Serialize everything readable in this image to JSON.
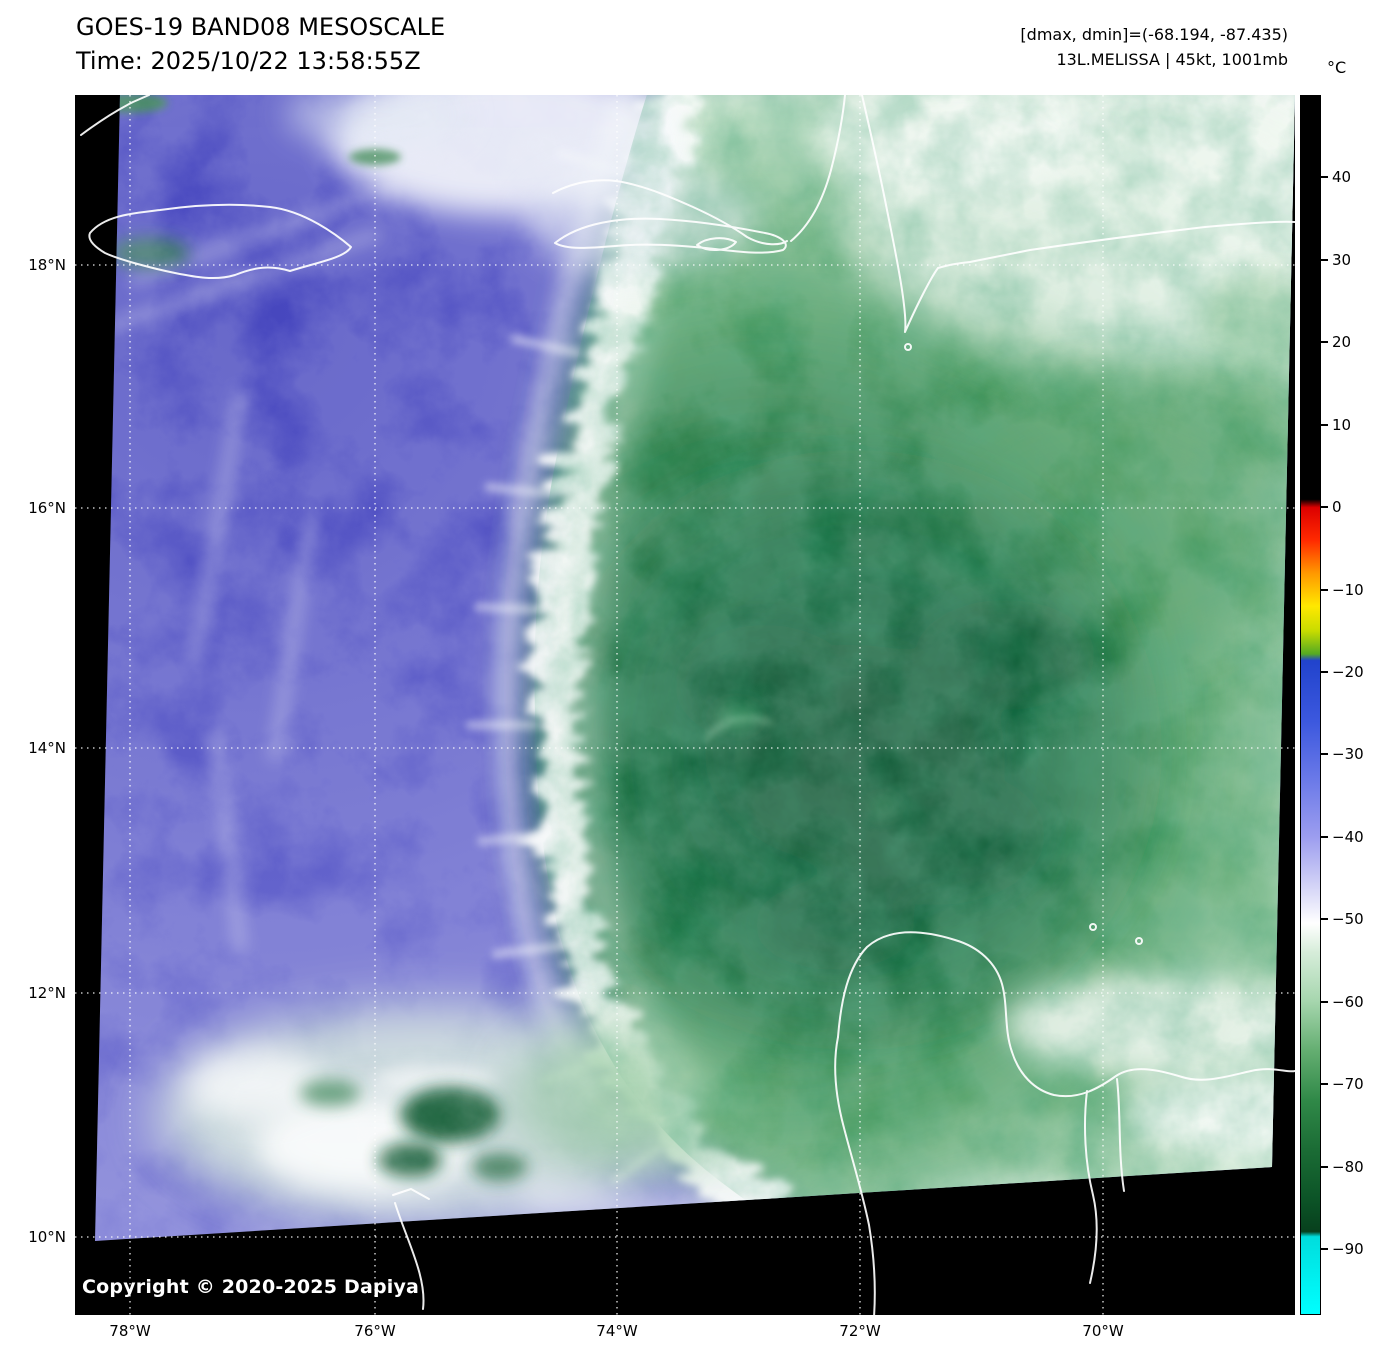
{
  "header": {
    "title": "GOES-19 BAND08 MESOSCALE",
    "time_line": "Time: 2025/10/22 13:58:55Z",
    "range_line": "[dmax, dmin]=(-68.194, -87.435)",
    "storm_line": "13L.MELISSA | 45kt, 1001mb"
  },
  "colorbar": {
    "unit_label": "°C",
    "value_max": 50,
    "value_min": -98,
    "ticks": [
      40,
      30,
      20,
      10,
      0,
      -10,
      -20,
      -30,
      -40,
      -50,
      -60,
      -70,
      -80,
      -90
    ],
    "gradient": [
      {
        "v": 50,
        "c": "#000000"
      },
      {
        "v": 1,
        "c": "#000000"
      },
      {
        "v": 0,
        "c": "#dd0000"
      },
      {
        "v": -4,
        "c": "#ff2a00"
      },
      {
        "v": -8,
        "c": "#ff9900"
      },
      {
        "v": -12,
        "c": "#ffe800"
      },
      {
        "v": -15,
        "c": "#c8dc00"
      },
      {
        "v": -17.8,
        "c": "#55aa22"
      },
      {
        "v": -18.6,
        "c": "#2143cc"
      },
      {
        "v": -26,
        "c": "#3c58de"
      },
      {
        "v": -33,
        "c": "#6a79e8"
      },
      {
        "v": -40,
        "c": "#9c9def"
      },
      {
        "v": -45,
        "c": "#cacaf5"
      },
      {
        "v": -48.5,
        "c": "#ebebfb"
      },
      {
        "v": -50.5,
        "c": "#ffffff"
      },
      {
        "v": -54,
        "c": "#d7edda"
      },
      {
        "v": -60,
        "c": "#a6d6ae"
      },
      {
        "v": -66,
        "c": "#64ae71"
      },
      {
        "v": -72,
        "c": "#308948"
      },
      {
        "v": -78,
        "c": "#1b6c35"
      },
      {
        "v": -84,
        "c": "#0c5427"
      },
      {
        "v": -88,
        "c": "#07401d"
      },
      {
        "v": -88.6,
        "c": "#00dddd"
      },
      {
        "v": -98,
        "c": "#00ffff"
      }
    ]
  },
  "axes": {
    "lat_labels": [
      "18°N",
      "16°N",
      "14°N",
      "12°N",
      "10°N"
    ],
    "lon_labels": [
      "78°W",
      "76°W",
      "74°W",
      "72°W",
      "70°W"
    ]
  },
  "map_overlay": {
    "copyright": "Copyright © 2020-2025 Dapiya"
  }
}
